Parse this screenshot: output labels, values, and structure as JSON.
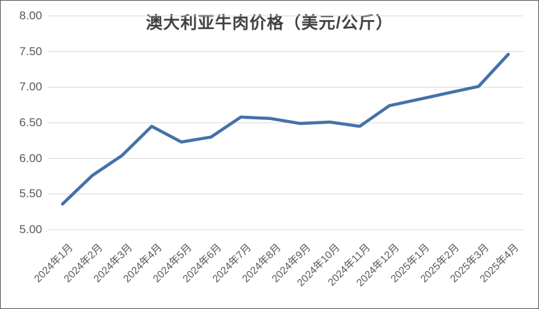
{
  "chart_data": {
    "type": "line",
    "title": "澳大利亚牛肉价格（美元/公斤）",
    "categories": [
      "2024年1月",
      "2024年2月",
      "2024年3月",
      "2024年4月",
      "2024年5月",
      "2024年6月",
      "2024年7月",
      "2024年8月",
      "2024年9月",
      "2024年10月",
      "2024年11月",
      "2024年12月",
      "2025年1月",
      "2025年2月",
      "2025年3月",
      "2025年4月"
    ],
    "values": [
      5.36,
      5.76,
      6.04,
      6.45,
      6.23,
      6.3,
      6.58,
      6.56,
      6.49,
      6.51,
      6.45,
      6.74,
      6.83,
      6.92,
      7.01,
      7.46
    ],
    "ylim": [
      5.0,
      8.0
    ],
    "ytick_labels": [
      "8.00",
      "7.50",
      "7.00",
      "6.50",
      "6.00",
      "5.50",
      "5.00"
    ],
    "grid": true,
    "legend": "none",
    "xlabel": "",
    "ylabel": "",
    "line_color": "#4472a8",
    "grid_color": "#d9d9d9",
    "title_color": "#404040",
    "tick_color": "#595959",
    "border_color": "#595959",
    "background": "#ffffff"
  }
}
